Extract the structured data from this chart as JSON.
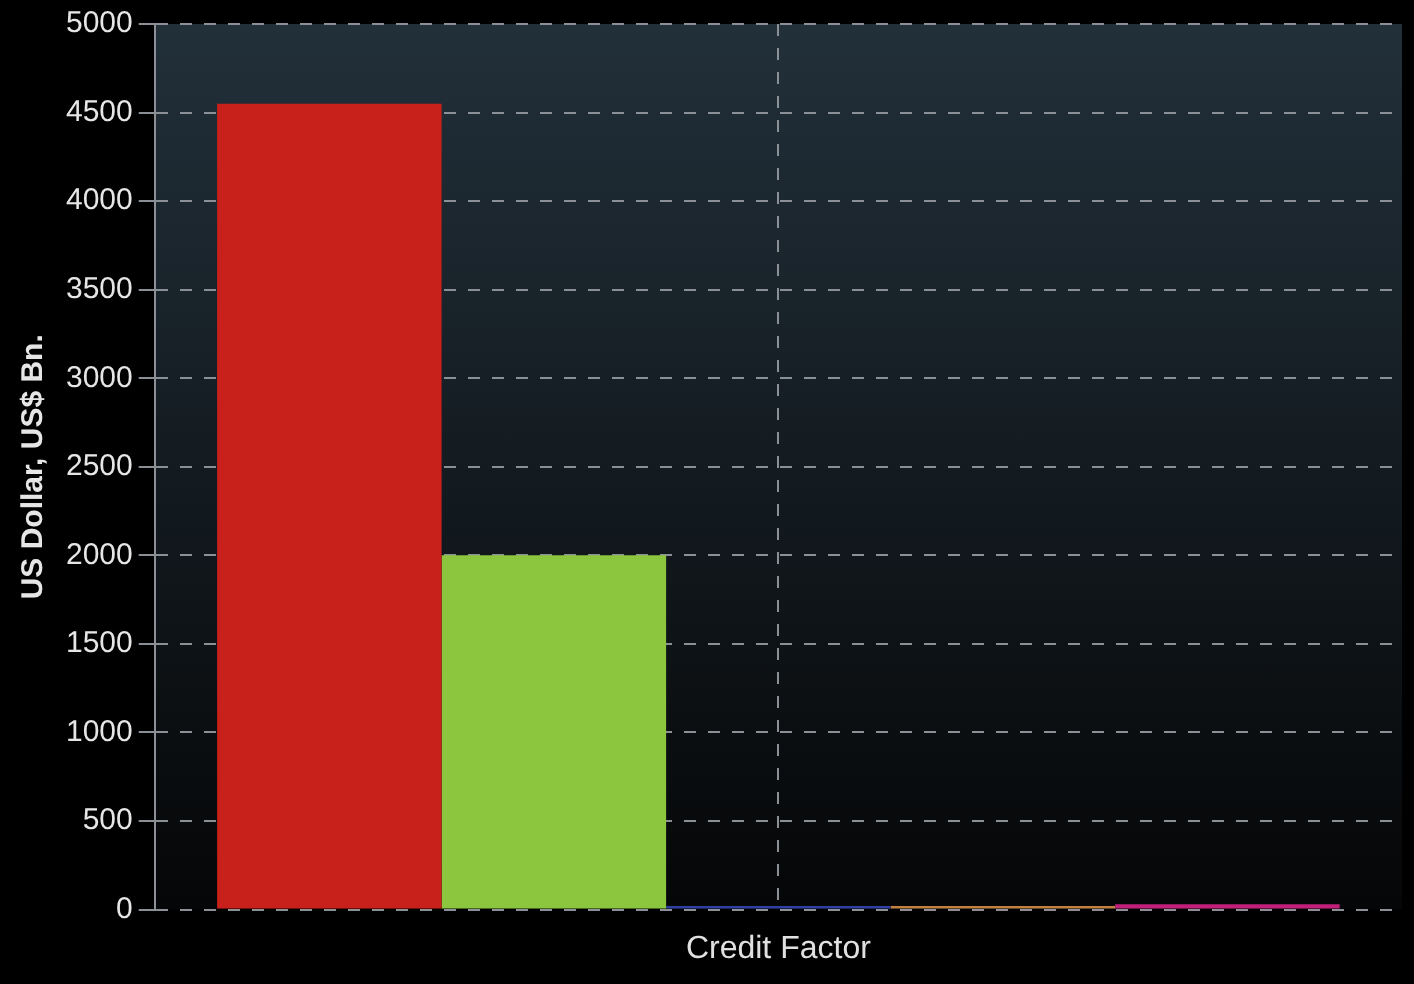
{
  "chart_data": {
    "type": "bar",
    "categories": [
      "Credit Factor"
    ],
    "ylabel": "US Dollar, US$ Bn.",
    "series": [
      {
        "color": "#c8201a",
        "values": [
          4550
        ]
      },
      {
        "color": "#8cc63f",
        "values": [
          2000
        ]
      },
      {
        "color": "#3040a0",
        "values": [
          20
        ]
      },
      {
        "color": "#c08040",
        "values": [
          20
        ]
      },
      {
        "color": "#c0207a",
        "values": [
          30
        ]
      }
    ],
    "ylim": [
      0,
      5000
    ],
    "yticks": [
      0,
      500,
      1000,
      1500,
      2000,
      2500,
      3000,
      3500,
      4000,
      4500,
      5000
    ],
    "grid": true,
    "legend": false
  }
}
